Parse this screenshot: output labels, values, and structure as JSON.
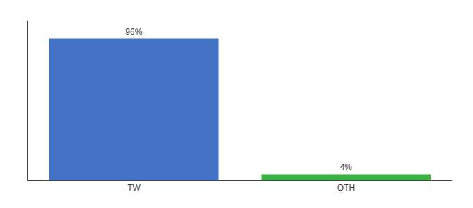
{
  "chart_data": {
    "type": "bar",
    "categories": [
      "TW",
      "OTH"
    ],
    "values": [
      96,
      4
    ],
    "value_labels": [
      "96%",
      "4%"
    ],
    "colors": [
      "#4472c4",
      "#3cb043"
    ],
    "ylim": [
      0,
      108
    ],
    "yticks": [],
    "grid": false,
    "data_labels": true,
    "tick_labels": "x"
  }
}
